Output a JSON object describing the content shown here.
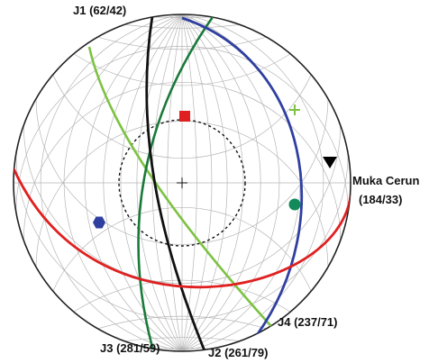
{
  "labels": {
    "j1": "J1 (62/42)",
    "j2": "J2 (261/79)",
    "j3": "J3 (281/59)",
    "j4": "J4 (237/71)",
    "slope_name": "Muka Cerun",
    "slope_value": "(184/33)"
  },
  "colors": {
    "j1": "#111111",
    "j2": "#1a7a3a",
    "j3": "#7cc242",
    "j4": "#2f3fa0",
    "slope": "#e02020",
    "grid": "#b5b5b5",
    "outline": "#222222",
    "pole_square": "#e02020",
    "pole_plus": "#7cc242",
    "pole_triangle": "#000000",
    "pole_circle": "#138a5a",
    "pole_hexagon": "#2f3fa0"
  },
  "markers": {
    "square": "pole-square",
    "plus": "pole-plus",
    "triangle": "pole-triangle",
    "circle": "pole-circle",
    "hexagon": "pole-hexagon",
    "center": "center-cross"
  }
}
